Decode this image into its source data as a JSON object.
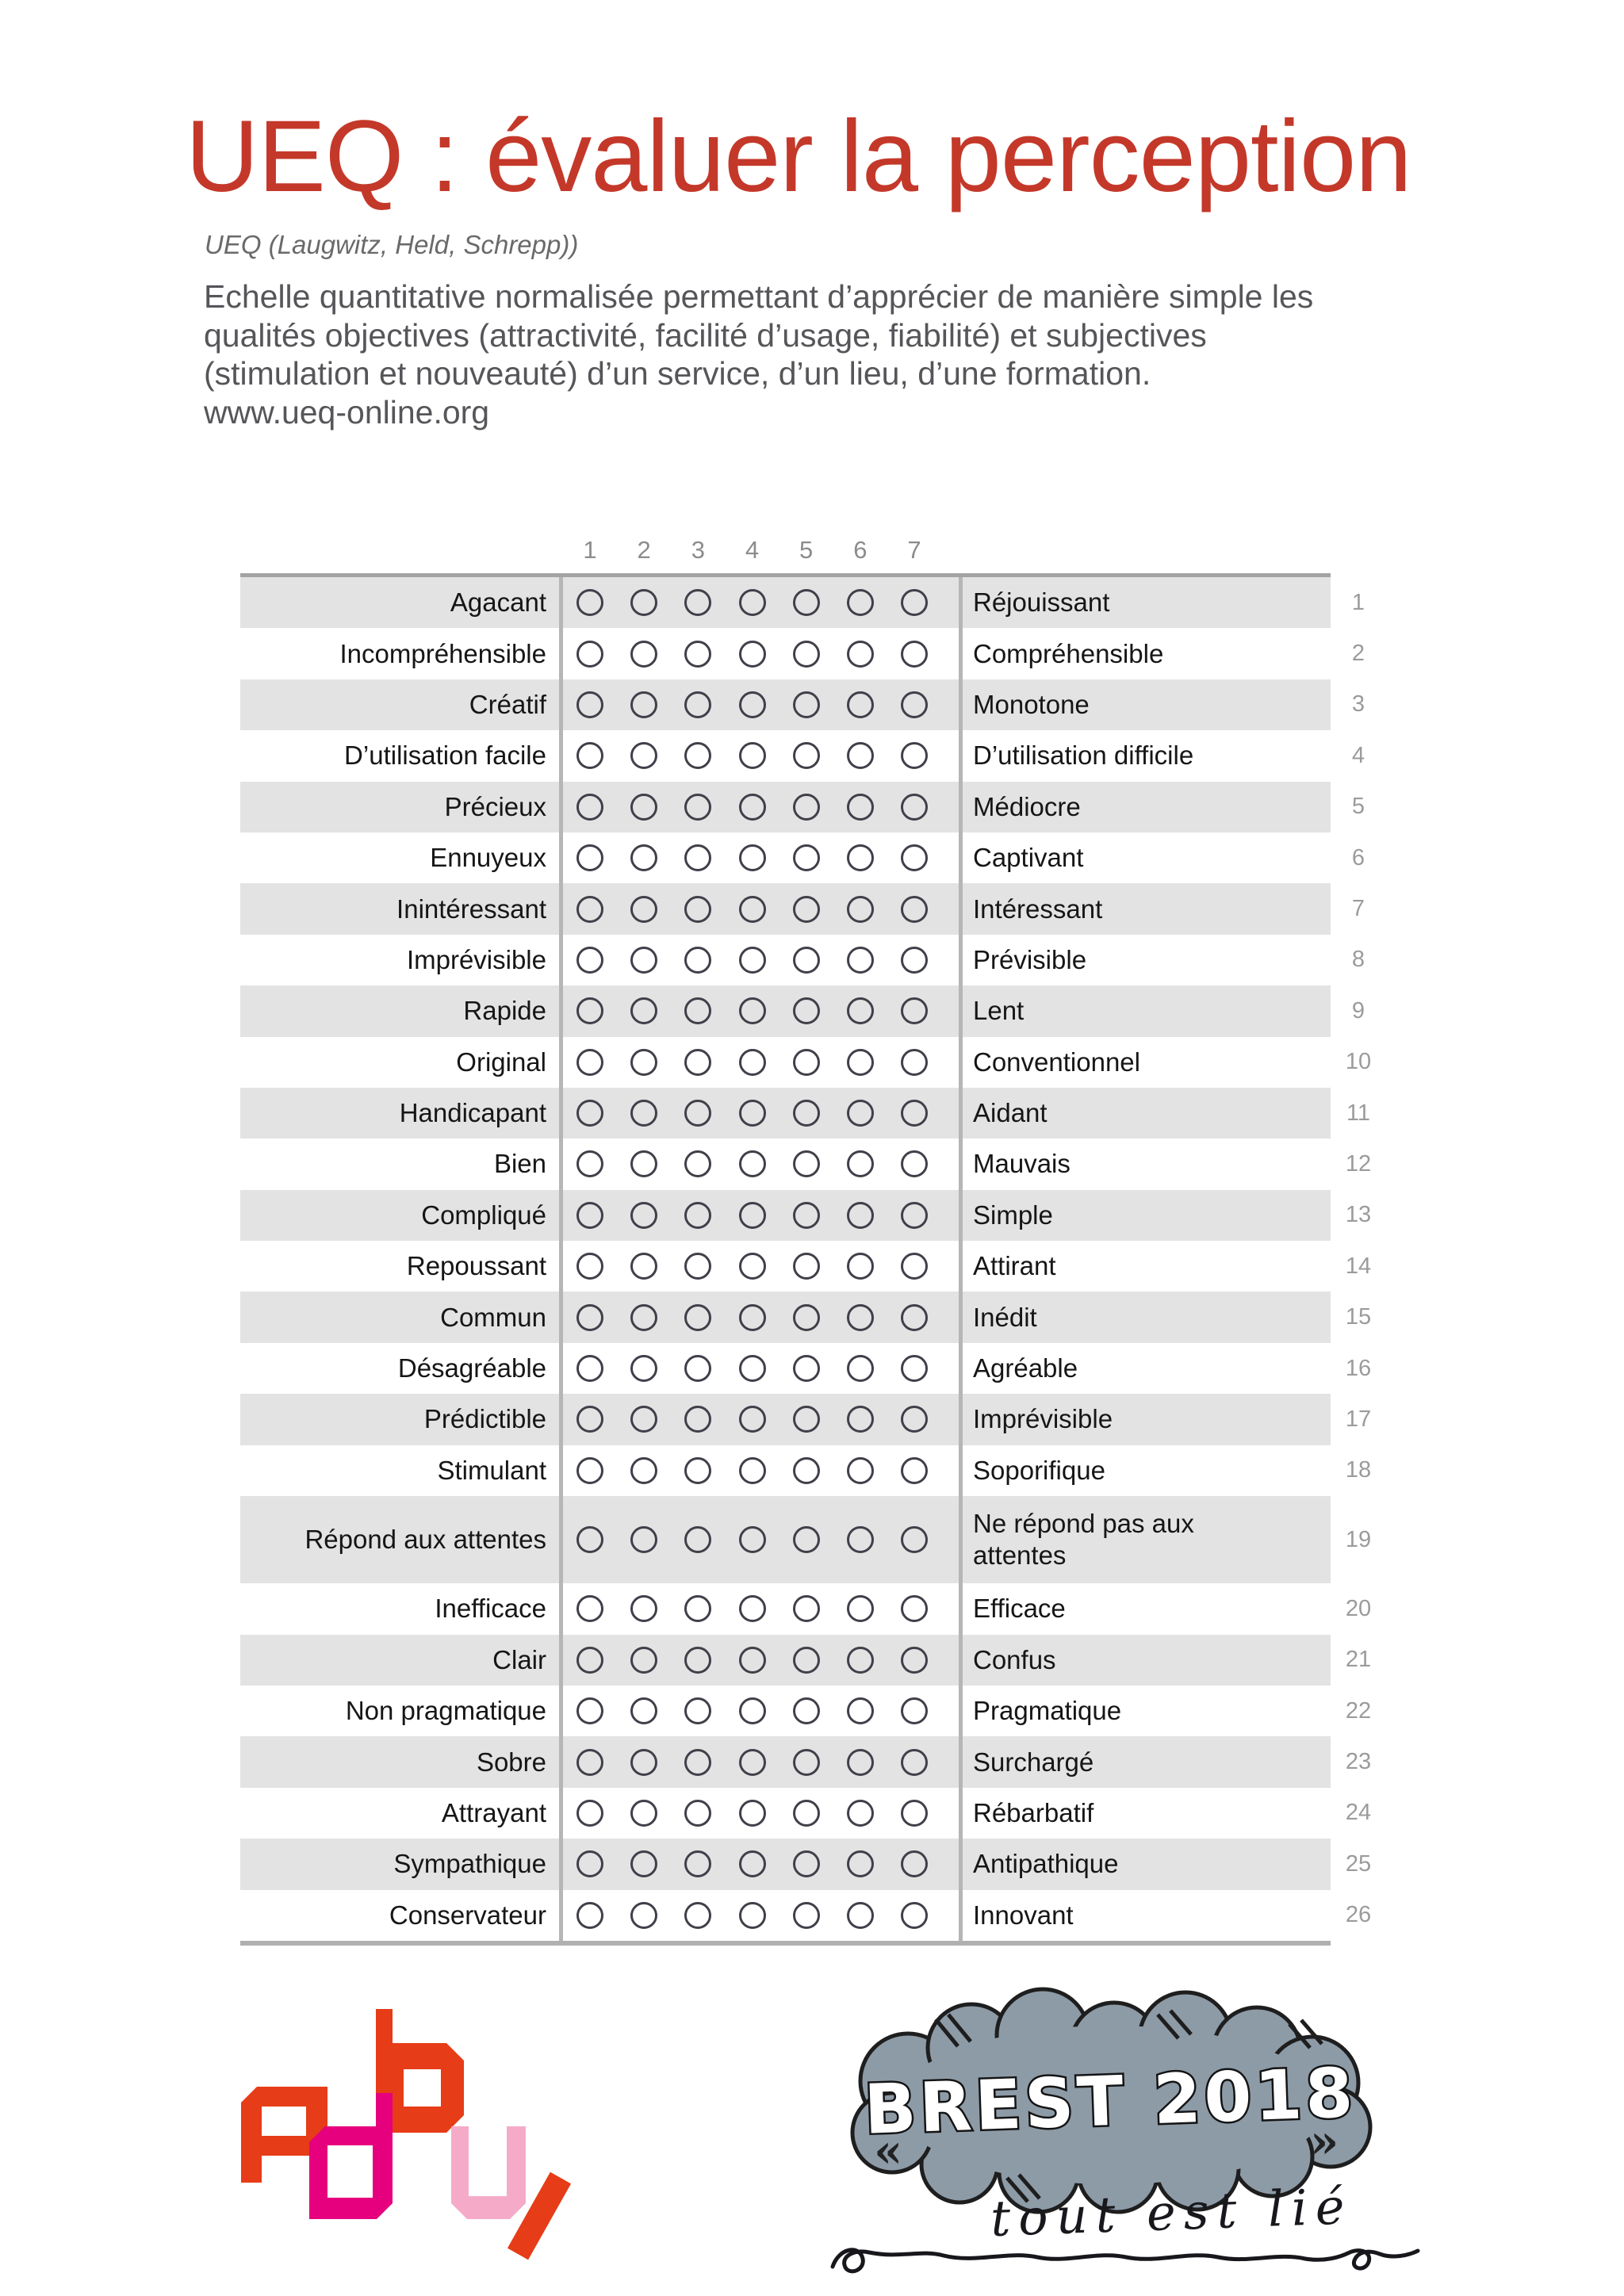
{
  "header": {
    "title": "UEQ : évaluer la perception",
    "subtitle": "UEQ (Laugwitz, Held, Schrepp))",
    "intro_lines": [
      "Echelle quantitative normalisée permettant d’apprécier de manière simple les",
      "qualités objectives (attractivité, facilité d’usage, fiabilité) et subjectives",
      "(stimulation et nouveauté) d’un service, d’un lieu, d’une formation."
    ],
    "website": "www.ueq-online.org"
  },
  "questionnaire": {
    "scale_values": [
      "1",
      "2",
      "3",
      "4",
      "5",
      "6",
      "7"
    ],
    "rows": [
      {
        "num": "1",
        "left": "Agacant",
        "right": "Réjouissant"
      },
      {
        "num": "2",
        "left": "Incompréhensible",
        "right": "Compréhensible"
      },
      {
        "num": "3",
        "left": "Créatif",
        "right": "Monotone"
      },
      {
        "num": "4",
        "left": "D’utilisation facile",
        "right": "D’utilisation difficile"
      },
      {
        "num": "5",
        "left": "Précieux",
        "right": "Médiocre"
      },
      {
        "num": "6",
        "left": "Ennuyeux",
        "right": "Captivant"
      },
      {
        "num": "7",
        "left": "Inintéressant",
        "right": "Intéressant"
      },
      {
        "num": "8",
        "left": "Imprévisible",
        "right": "Prévisible"
      },
      {
        "num": "9",
        "left": "Rapide",
        "right": "Lent"
      },
      {
        "num": "10",
        "left": "Original",
        "right": "Conventionnel"
      },
      {
        "num": "11",
        "left": "Handicapant",
        "right": "Aidant"
      },
      {
        "num": "12",
        "left": "Bien",
        "right": "Mauvais"
      },
      {
        "num": "13",
        "left": "Compliqué",
        "right": "Simple"
      },
      {
        "num": "14",
        "left": "Repoussant",
        "right": "Attirant"
      },
      {
        "num": "15",
        "left": "Commun",
        "right": "Inédit"
      },
      {
        "num": "16",
        "left": "Désagréable",
        "right": "Agréable"
      },
      {
        "num": "17",
        "left": "Prédictible",
        "right": "Imprévisible"
      },
      {
        "num": "18",
        "left": "Stimulant",
        "right": "Soporifique"
      },
      {
        "num": "19",
        "left": "Répond aux attentes",
        "right": "Ne répond pas aux attentes",
        "tall": true
      },
      {
        "num": "20",
        "left": "Inefficace",
        "right": "Efficace"
      },
      {
        "num": "21",
        "left": "Clair",
        "right": "Confus"
      },
      {
        "num": "22",
        "left": "Non pragmatique",
        "right": "Pragmatique"
      },
      {
        "num": "23",
        "left": "Sobre",
        "right": "Surchargé"
      },
      {
        "num": "24",
        "left": "Attrayant",
        "right": "Rébarbatif"
      },
      {
        "num": "25",
        "left": "Sympathique",
        "right": "Antipathique"
      },
      {
        "num": "26",
        "left": "Conservateur",
        "right": "Innovant"
      }
    ]
  },
  "footer": {
    "brest_title": "BREST 2018",
    "brest_quote": "tout est lié",
    "open_quote": "«",
    "close_quote": "»"
  },
  "colors": {
    "accent_red": "#c4382a",
    "stripe_gray": "#e4e3e3",
    "logo_red": "#e63c17",
    "logo_magenta": "#e6007e",
    "logo_pink": "#f5abc8",
    "cloud_fill": "#8d9ba7"
  }
}
